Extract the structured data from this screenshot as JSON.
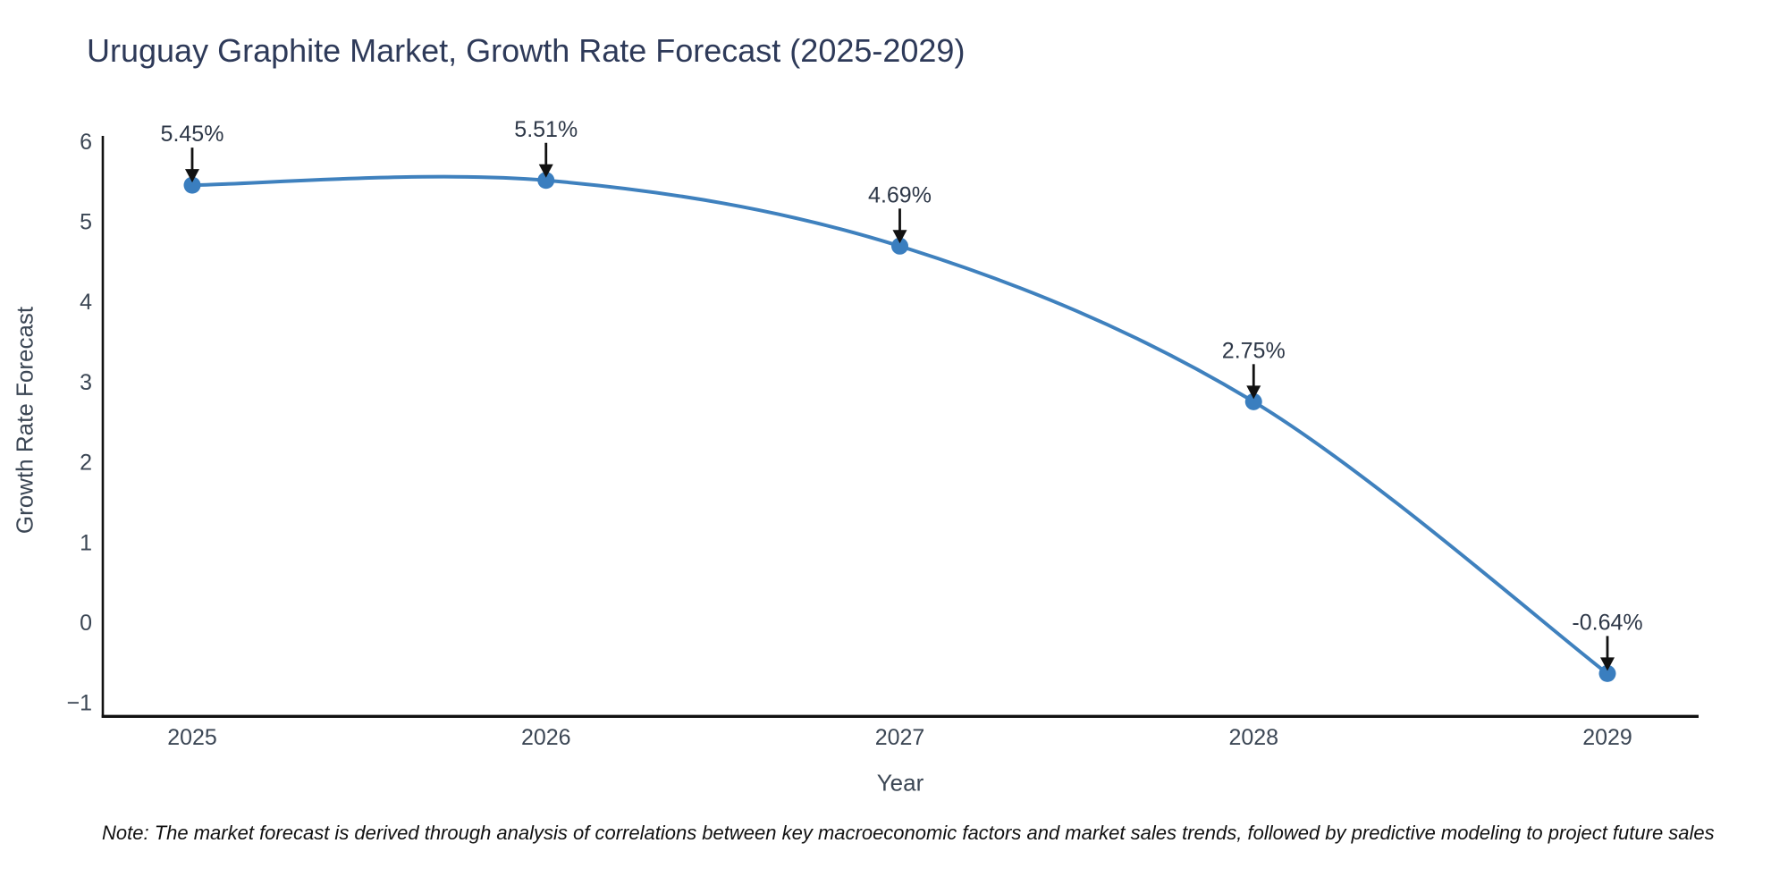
{
  "page": {
    "background": "#ffffff"
  },
  "header": {
    "title": "Uruguay Graphite Market, Growth Rate Forecast (2025-2029)"
  },
  "footer": {
    "note": "Note: The market forecast is derived through analysis of correlations between key macroeconomic factors and market sales trends, followed by predictive modeling to project future sales"
  },
  "chart_data": {
    "type": "line",
    "title": "Uruguay Graphite Market, Growth Rate Forecast (2025-2029)",
    "xlabel": "Year",
    "ylabel": "Growth Rate Forecast",
    "x": [
      2025,
      2026,
      2027,
      2028,
      2029
    ],
    "xticks": [
      "2025",
      "2026",
      "2027",
      "2028",
      "2029"
    ],
    "series": [
      {
        "name": "Growth Rate Forecast",
        "values": [
          5.45,
          5.51,
          4.69,
          2.75,
          -0.64
        ]
      }
    ],
    "point_labels": [
      "5.45%",
      "5.51%",
      "4.69%",
      "2.75%",
      "-0.64%"
    ],
    "yticks": [
      6,
      5,
      4,
      3,
      2,
      1,
      0,
      -1
    ],
    "ylim": [
      -1.17,
      6.05
    ],
    "xlim": [
      2024.75,
      2029.26
    ],
    "grid": false,
    "legend_position": "none",
    "line_shape": "spline",
    "marker": "circle",
    "annotation_arrow": "down",
    "colors": {
      "line": "#3f81be",
      "marker": "#3a7ebf",
      "arrow": "#111111",
      "spine": "#111111",
      "title_text": "#2e3a59",
      "axis_label_text": "#3b4654",
      "tick_text": "#3b4654",
      "annotation_text": "#2d3747",
      "background": "#ffffff"
    }
  }
}
